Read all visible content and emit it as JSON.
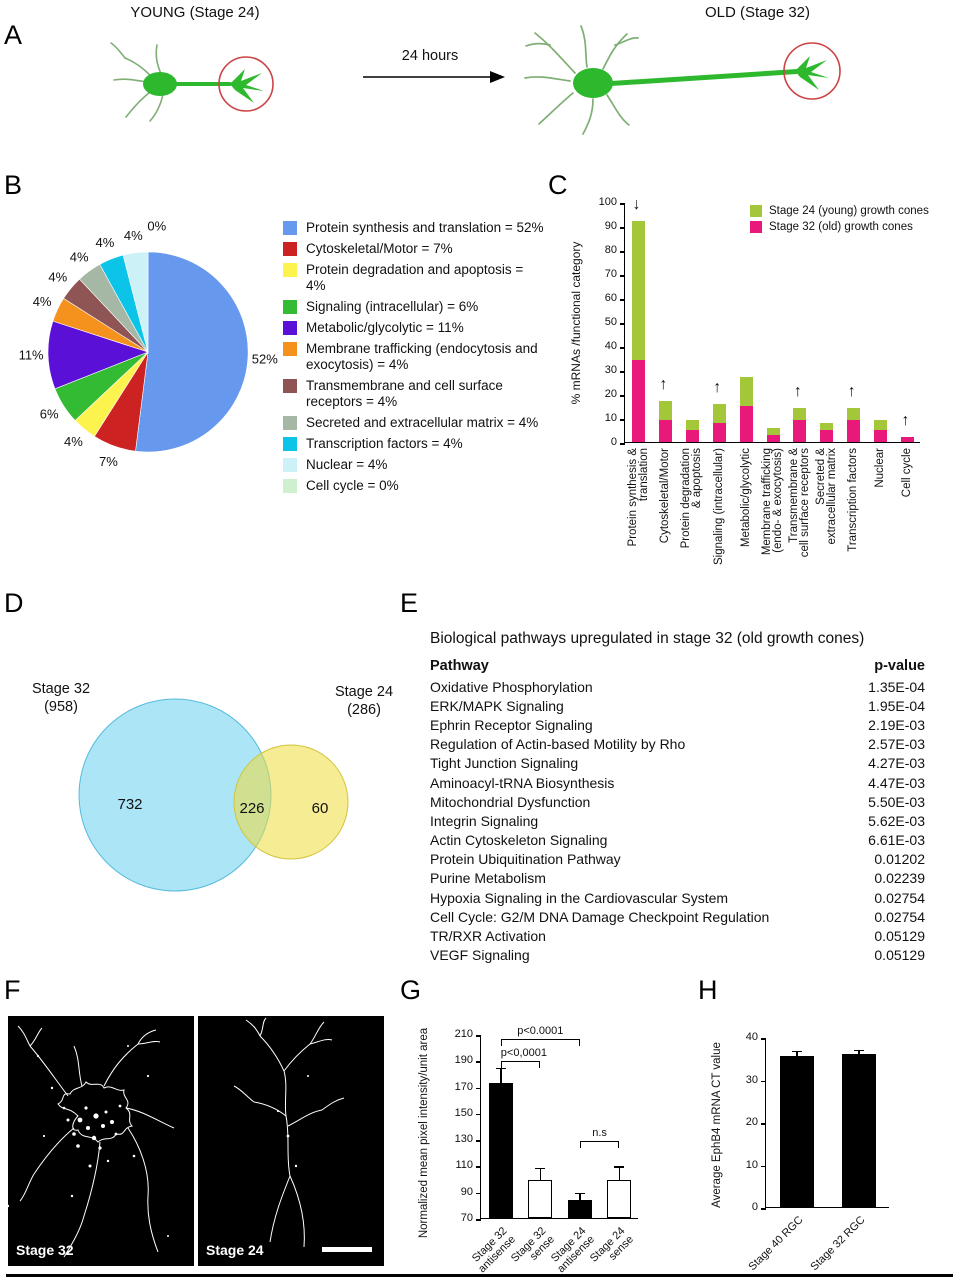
{
  "panel_a": {
    "label": "A",
    "young_title": "YOUNG (Stage 24)",
    "old_title": "OLD (Stage 32)",
    "arrow_label": "24 hours"
  },
  "panel_b": {
    "label": "B"
  },
  "panel_c": {
    "label": "C",
    "legend": [
      {
        "label": "Stage 24 (young) growth cones",
        "color": "#a4c639"
      },
      {
        "label": "Stage 32 (old) growth cones",
        "color": "#e9197b"
      }
    ]
  },
  "panel_d": {
    "label": "D",
    "left_title": "Stage 32",
    "left_count": "(958)",
    "right_title": "Stage 24",
    "right_count": "(286)",
    "left_only": "732",
    "overlap": "226",
    "right_only": "60"
  },
  "panel_e": {
    "label": "E",
    "title": "Biological pathways upregulated in stage 32 (old growth cones)",
    "col_pathway": "Pathway",
    "col_pvalue": "p-value",
    "rows": [
      {
        "pathway": "Oxidative Phosphorylation",
        "p": "1.35E-04"
      },
      {
        "pathway": "ERK/MAPK Signaling",
        "p": "1.95E-04"
      },
      {
        "pathway": "Ephrin Receptor Signaling",
        "p": "2.19E-03"
      },
      {
        "pathway": "Regulation of Actin-based Motility by Rho",
        "p": "2.57E-03"
      },
      {
        "pathway": "Tight Junction Signaling",
        "p": "4.27E-03"
      },
      {
        "pathway": "Aminoacyl-tRNA Biosynthesis",
        "p": "4.47E-03"
      },
      {
        "pathway": "Mitochondrial Dysfunction",
        "p": "5.50E-03"
      },
      {
        "pathway": "Integrin Signaling",
        "p": "5.62E-03"
      },
      {
        "pathway": "Actin Cytoskeleton Signaling",
        "p": "6.61E-03"
      },
      {
        "pathway": "Protein Ubiquitination Pathway",
        "p": "0.01202"
      },
      {
        "pathway": "Purine Metabolism",
        "p": "0.02239"
      },
      {
        "pathway": "Hypoxia Signaling in the Cardiovascular System",
        "p": "0.02754"
      },
      {
        "pathway": "Cell Cycle: G2/M DNA Damage Checkpoint Regulation",
        "p": "0.02754"
      },
      {
        "pathway": "TR/RXR Activation",
        "p": "0.05129"
      },
      {
        "pathway": "VEGF Signaling",
        "p": "0.05129"
      }
    ]
  },
  "panel_f": {
    "label": "F",
    "image1_label": "Stage 32",
    "image2_label": "Stage 24"
  },
  "panel_g": {
    "label": "G"
  },
  "panel_h": {
    "label": "H"
  },
  "chart_data": [
    {
      "type": "pie",
      "panel": "B",
      "slices": [
        {
          "label": "Protein synthesis and translation",
          "value": 52,
          "pct": "52%",
          "color": "#6699ee",
          "legend": "Protein synthesis and translation = 52%"
        },
        {
          "label": "Cytoskeletal/Motor",
          "value": 7,
          "pct": "7%",
          "color": "#cc2222",
          "legend": "Cytoskeletal/Motor = 7%"
        },
        {
          "label": "Protein degradation and apoptosis",
          "value": 4,
          "pct": "4%",
          "color": "#fdf34f",
          "legend": "Protein degradation and apoptosis = 4%"
        },
        {
          "label": "Signaling (intracellular)",
          "value": 6,
          "pct": "6%",
          "color": "#33bb33",
          "legend": "Signaling (intracellular) = 6%"
        },
        {
          "label": "Metabolic/glycolytic",
          "value": 11,
          "pct": "11%",
          "color": "#5b10d8",
          "legend": "Metabolic/glycolytic = 11%"
        },
        {
          "label": "Membrane trafficking (endocytosis and exocytosis)",
          "value": 4,
          "pct": "4%",
          "color": "#f5921e",
          "legend": "Membrane trafficking (endocytosis and exocytosis) = 4%"
        },
        {
          "label": "Transmembrane and cell surface receptors",
          "value": 4,
          "pct": "4%",
          "color": "#8f5454",
          "legend": "Transmembrane and cell surface receptors = 4%"
        },
        {
          "label": "Secreted and extracellular matrix",
          "value": 4,
          "pct": "4%",
          "color": "#a5b8a5",
          "legend": "Secreted and extracellular matrix = 4%"
        },
        {
          "label": "Transcription factors",
          "value": 4,
          "pct": "4%",
          "color": "#0cc4e8",
          "legend": "Transcription factors = 4%"
        },
        {
          "label": "Nuclear",
          "value": 4,
          "pct": "4%",
          "color": "#ccf2f7",
          "legend": "Nuclear = 4%"
        },
        {
          "label": "Cell cycle",
          "value": 0,
          "pct": "0%",
          "color": "#cff0cf",
          "legend": "Cell cycle = 0%"
        }
      ]
    },
    {
      "type": "bar",
      "panel": "C",
      "stacked": true,
      "ylabel": "% mRNAs /functional category",
      "ylim": [
        0,
        100
      ],
      "yticks": [
        0,
        10,
        20,
        30,
        40,
        50,
        60,
        70,
        80,
        90,
        100
      ],
      "categories": [
        [
          "Protein synthesis &",
          "translation"
        ],
        [
          "Cytoskeletal/Motor"
        ],
        [
          "Protein degradation",
          "& apoptosis"
        ],
        [
          "Signaling (intracellular)"
        ],
        [
          "Metabolic/glycolytic"
        ],
        [
          "Membrane trafficking",
          "(endo- & exocytosis)"
        ],
        [
          "Transmembrane &",
          "cell surface receptors"
        ],
        [
          "Secreted &",
          "extracellular matrix"
        ],
        [
          "Transcription factors"
        ],
        [
          "Nuclear"
        ],
        [
          "Cell cycle"
        ]
      ],
      "series": [
        {
          "name": "Stage 32 (old) growth cones",
          "color": "#e9197b",
          "values": [
            34,
            9,
            5,
            8,
            15,
            3,
            9,
            5,
            9,
            5,
            2
          ]
        },
        {
          "name": "Stage 24 (young) growth cones",
          "color": "#a4c639",
          "values": [
            58,
            8,
            4,
            8,
            12,
            3,
            5,
            3,
            5,
            4,
            0
          ]
        }
      ],
      "arrows": [
        "down",
        "up",
        "",
        "up",
        "",
        "",
        "up",
        "",
        "up",
        "",
        "up"
      ]
    },
    {
      "type": "venn",
      "panel": "D",
      "sets": [
        {
          "label": "Stage 32",
          "total": 958,
          "unique": 732
        },
        {
          "label": "Stage 24",
          "total": 286,
          "unique": 60
        }
      ],
      "overlap": 226
    },
    {
      "type": "bar",
      "panel": "G",
      "ylabel": "Normalized mean pixel intensity/unit area",
      "ylim": [
        70,
        210
      ],
      "yticks": [
        70,
        90,
        110,
        130,
        150,
        170,
        190,
        210
      ],
      "categories": [
        [
          "Stage 32",
          "antisense"
        ],
        [
          "Stage 32",
          "sense"
        ],
        [
          "Stage 24",
          "antisense"
        ],
        [
          "Stage 24",
          "sense"
        ]
      ],
      "values": [
        173,
        99,
        84,
        99
      ],
      "errors": [
        12,
        10,
        6,
        11
      ],
      "bar_fills": [
        "#000000",
        "#ffffff",
        "#000000",
        "#ffffff"
      ],
      "significance": [
        {
          "from": 0,
          "to": 2,
          "label": "p<0.0001"
        },
        {
          "from": 0,
          "to": 1,
          "label": "p<0,0001"
        },
        {
          "from": 2,
          "to": 3,
          "label": "n.s"
        }
      ]
    },
    {
      "type": "bar",
      "panel": "H",
      "ylabel": "Average EphB4 mRNA CT value",
      "ylim": [
        0,
        40
      ],
      "yticks": [
        0,
        10,
        20,
        30,
        40
      ],
      "categories": [
        "Stage 40 RGC",
        "Stage 32 RGC"
      ],
      "values": [
        35.5,
        36
      ],
      "errors": [
        1.5,
        1.2
      ],
      "bar_fills": [
        "#000000",
        "#000000"
      ]
    }
  ]
}
